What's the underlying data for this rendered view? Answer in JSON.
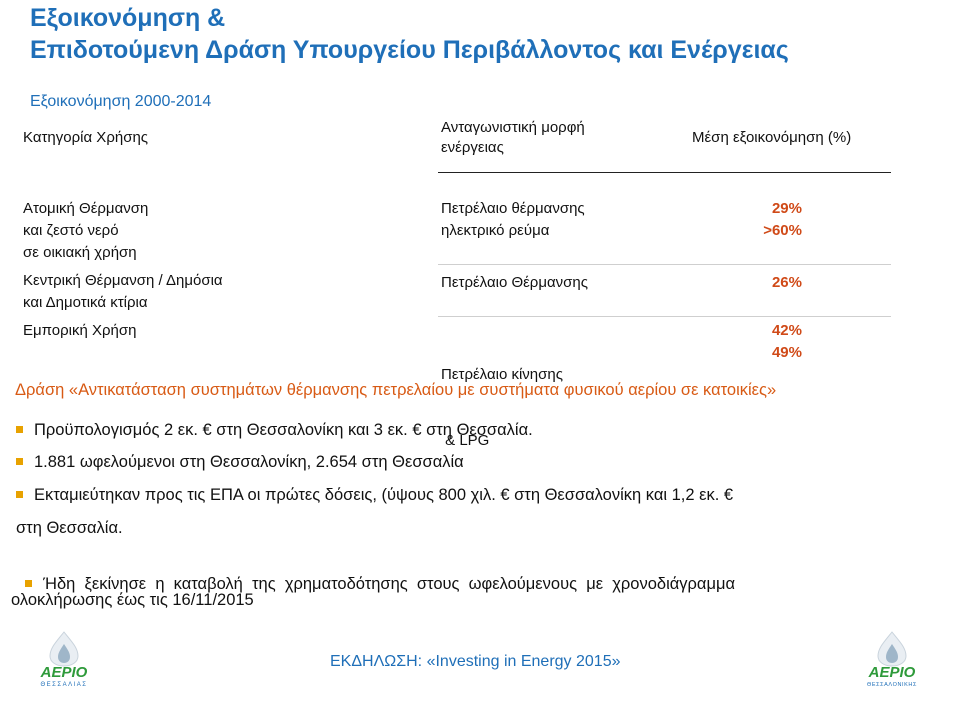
{
  "title": {
    "line1": "Εξοικονόμηση &",
    "line2": "Επιδοτούμενη Δράση Υπουργείου Περιβάλλοντος και Ενέργειας"
  },
  "subtitle": "Εξοικονόμηση 2000-2014",
  "table": {
    "headers": {
      "category": "Κατηγορία Χρήσης",
      "energy_line1": "Ανταγωνιστική μορφή",
      "energy_line2": "ενέργειας",
      "saving": "Μέση εξοικονόμηση (%)"
    },
    "rows": [
      {
        "category": [
          "Ατομική Θέρμανση",
          "και ζεστό νερό",
          "σε οικιακή χρήση"
        ],
        "energy": [
          "Πετρέλαιο θέρμανσης",
          "ηλεκτρικό ρεύμα"
        ],
        "saving": [
          "29%",
          ">60%"
        ]
      },
      {
        "category": [
          "Κεντρική Θέρμανση / Δημόσια",
          "και Δημοτικά κτίρια"
        ],
        "energy": [
          "Πετρέλαιο Θέρμανσης"
        ],
        "saving": [
          "26%"
        ]
      },
      {
        "category": [
          "Εμπορική Χρήση"
        ],
        "energy": [
          "Πετρέλαιο κίνησης",
          " & LPG"
        ],
        "saving": [
          "42%",
          "49%"
        ]
      }
    ]
  },
  "action_title": "Δράση «Αντικατάσταση συστημάτων θέρμανσης πετρελαίου με συστήματα φυσικού αερίου σε κατοικίες»",
  "bullets": [
    "Προϋπολογισμός 2 εκ. € στη Θεσσαλονίκη και 3 εκ. € στη Θεσσαλία.",
    "1.881 ωφελούμενοι στη Θεσσαλονίκη, 2.654 στη Θεσσαλία",
    "Εκταμιεύτηκαν προς τις ΕΠΑ οι πρώτες δόσεις, (ύψους 800 χιλ. € στη Θεσσαλονίκη και 1,2 εκ. €",
    "στη Θεσσαλία.",
    "Ήδη  ξεκίνησε  η  καταβολή  της  χρηματοδότησης  στους  ωφελούμενους  με  χρονοδιάγραμμα",
    "ολοκλήρωσης έως τις 16/11/2015"
  ],
  "footer": "ΕΚΔΗΛΩΣΗ: «Investing in Energy 2015»",
  "logos": {
    "left": {
      "name": "ΑΕΡΙΟ",
      "sub": "ΘΕΣΣΑΛΙΑΣ"
    },
    "right": {
      "name": "ΑΕΡΙΟ",
      "sub": "ΘΕΣΣΑΛΟΝΙΚΗΣ"
    }
  },
  "colors": {
    "title": "#1f6fb8",
    "accent": "#d04a18",
    "bullet": "#e8a200",
    "logo_green": "#2e9a3a"
  }
}
